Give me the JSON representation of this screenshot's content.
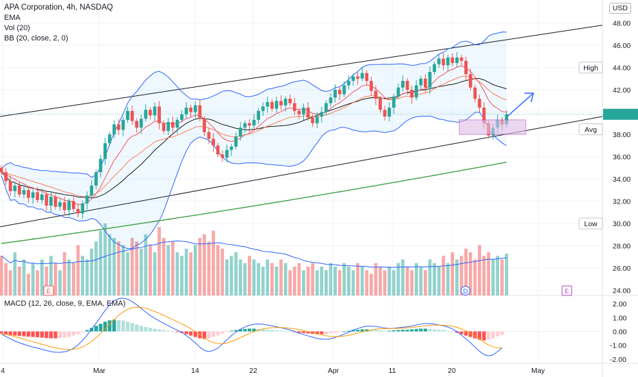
{
  "legend": {
    "title": "APA Corporation, 4h, NASDAQ",
    "ema": "EMA",
    "vol": "Vol (20)",
    "bb": "BB (20, close, 2, 0)",
    "macd": "MACD (12, 26, close, 9, EMA, EMA)"
  },
  "currency_button": "USD",
  "price_tags": {
    "high": "High",
    "avg": "Avg",
    "low": "Low"
  },
  "event_badges": [
    {
      "label": "E",
      "type": "earnings"
    },
    {
      "label": "D",
      "type": "dividend"
    },
    {
      "label": "E",
      "type": "earnings"
    }
  ],
  "colors": {
    "up": "#26a69a",
    "down": "#ef5350",
    "bb": "#2962ff",
    "ema_fast": "#f7525f",
    "ema_slow": "#000000",
    "ema_long": "#43a047",
    "macd": "#2962ff",
    "signal": "#ff9800",
    "box": "#e1bee7",
    "arrow": "#2962ff"
  },
  "chart_data": {
    "type": "candlestick",
    "y_ticks": [
      "48.00",
      "46.00",
      "44.00",
      "42.00",
      "40.00",
      "38.00",
      "36.00",
      "34.00",
      "32.00",
      "30.00",
      "28.00",
      "26.00",
      "24.00"
    ],
    "macd_ticks": [
      "2.00",
      "1.00",
      "0.00",
      "-1.00",
      "-2.00"
    ],
    "x_ticks": [
      "4",
      "Mar",
      "14",
      "22",
      "Apr",
      "11",
      "20",
      "May"
    ],
    "ylim": [
      22.8,
      49.2
    ],
    "macd_ylim": [
      -2.3,
      2.3
    ],
    "candle_closes": [
      34.6,
      33.8,
      32.9,
      33.4,
      32.6,
      33.0,
      32.3,
      32.8,
      32.1,
      32.6,
      31.6,
      32.4,
      31.5,
      31.9,
      31.2,
      32.0,
      31.3,
      30.9,
      31.8,
      32.5,
      33.4,
      34.6,
      35.8,
      37.2,
      38.0,
      38.9,
      38.4,
      39.3,
      40.1,
      39.2,
      38.6,
      39.4,
      40.2,
      39.7,
      40.5,
      39.0,
      38.3,
      39.1,
      38.6,
      39.3,
      39.8,
      40.4,
      40.0,
      40.6,
      39.4,
      38.2,
      37.6,
      37.0,
      36.2,
      35.9,
      36.6,
      36.9,
      37.8,
      38.6,
      39.0,
      38.8,
      39.3,
      40.1,
      40.5,
      40.9,
      40.3,
      41.0,
      40.6,
      41.2,
      40.8,
      40.1,
      39.8,
      40.4,
      39.5,
      39.0,
      39.6,
      40.0,
      40.8,
      41.3,
      42.0,
      41.6,
      42.4,
      42.8,
      43.2,
      43.0,
      43.5,
      42.8,
      41.9,
      41.2,
      40.2,
      39.6,
      40.4,
      41.4,
      42.2,
      42.8,
      42.0,
      41.3,
      42.4,
      43.0,
      42.2,
      43.6,
      44.3,
      44.8,
      44.2,
      44.9,
      44.4,
      44.9,
      44.6,
      43.4,
      42.2,
      41.2,
      40.4,
      39.0,
      37.9,
      38.6,
      39.3,
      38.9,
      39.8
    ],
    "ema_long_start": 28.2,
    "ema_long_end": 35.5,
    "channel": {
      "upper": [
        39.6,
        47.8
      ],
      "lower": [
        29.7,
        39.6
      ]
    },
    "macd_hist": [
      -0.15,
      -0.2,
      -0.25,
      -0.3,
      -0.32,
      -0.35,
      -0.38,
      -0.4,
      -0.42,
      -0.45,
      -0.48,
      -0.5,
      -0.5,
      -0.48,
      -0.45,
      -0.4,
      -0.3,
      -0.2,
      -0.05,
      0.1,
      0.25,
      0.4,
      0.55,
      0.7,
      0.8,
      0.85,
      0.82,
      0.78,
      0.7,
      0.6,
      0.5,
      0.4,
      0.32,
      0.25,
      0.2,
      0.15,
      0.1,
      0.05,
      0.0,
      -0.05,
      -0.1,
      -0.2,
      -0.3,
      -0.4,
      -0.5,
      -0.55,
      -0.5,
      -0.4,
      -0.3,
      -0.15,
      -0.05,
      0.05,
      0.1,
      0.15,
      0.18,
      0.2,
      0.2,
      0.18,
      0.15,
      0.12,
      0.1,
      0.08,
      0.05,
      0.02,
      0.0,
      -0.05,
      -0.1,
      -0.12,
      -0.15,
      -0.18,
      -0.2,
      -0.2,
      -0.18,
      -0.15,
      -0.1,
      -0.05,
      0.0,
      0.05,
      0.1,
      0.12,
      0.15,
      0.15,
      0.12,
      0.1,
      0.08,
      0.05,
      0.05,
      0.08,
      0.1,
      0.12,
      0.12,
      0.15,
      0.18,
      0.2,
      0.2,
      0.18,
      0.15,
      0.12,
      0.1,
      0.05,
      0.0,
      -0.1,
      -0.2,
      -0.3,
      -0.4,
      -0.5,
      -0.6,
      -0.65,
      -0.6,
      -0.5,
      -0.35,
      -0.25
    ],
    "volume": [
      0.55,
      0.45,
      0.35,
      0.6,
      0.4,
      0.5,
      0.3,
      0.45,
      0.35,
      0.5,
      0.4,
      0.55,
      0.45,
      0.35,
      0.6,
      0.5,
      0.45,
      0.7,
      0.55,
      0.5,
      0.65,
      0.75,
      0.9,
      1.0,
      0.85,
      0.8,
      0.75,
      0.7,
      0.6,
      0.8,
      0.75,
      0.65,
      0.85,
      0.7,
      0.6,
      0.95,
      0.8,
      0.7,
      0.75,
      0.6,
      0.55,
      0.65,
      0.6,
      0.7,
      0.8,
      0.85,
      0.75,
      0.9,
      0.7,
      0.65,
      0.5,
      0.55,
      0.6,
      0.5,
      0.45,
      0.55,
      0.5,
      0.45,
      0.4,
      0.5,
      0.45,
      0.4,
      0.5,
      0.45,
      0.35,
      0.4,
      0.45,
      0.35,
      0.4,
      0.45,
      0.35,
      0.4,
      0.35,
      0.45,
      0.4,
      0.35,
      0.45,
      0.4,
      0.35,
      0.45,
      0.4,
      0.35,
      0.3,
      0.45,
      0.4,
      0.35,
      0.4,
      0.35,
      0.45,
      0.5,
      0.4,
      0.35,
      0.45,
      0.4,
      0.35,
      0.5,
      0.45,
      0.4,
      0.55,
      0.45,
      0.6,
      0.5,
      0.55,
      0.65,
      0.6,
      0.5,
      0.7,
      0.55,
      0.6,
      0.5,
      0.55,
      0.5,
      0.58
    ]
  }
}
